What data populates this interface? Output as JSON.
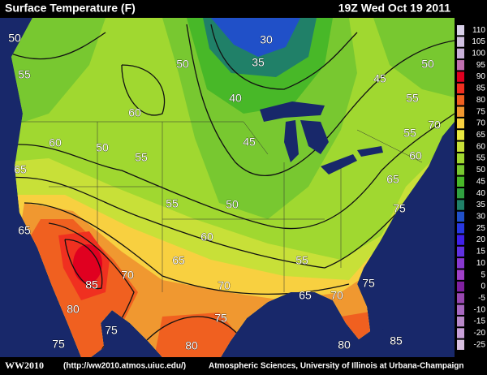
{
  "header": {
    "title": "Surface Temperature (F)",
    "timestamp": "19Z Wed Oct 19 2011"
  },
  "contour_labels": [
    50,
    30,
    35,
    50,
    50,
    55,
    45,
    40,
    55,
    60,
    70,
    55,
    60,
    50,
    45,
    55,
    60,
    65,
    65,
    55,
    50,
    75,
    65,
    60,
    65,
    55,
    70,
    85,
    70,
    75,
    65,
    70,
    80,
    75,
    75,
    75,
    80,
    80,
    85
  ],
  "legend": {
    "items": [
      {
        "value": 110,
        "color": "#d8d0e8"
      },
      {
        "value": 105,
        "color": "#d0c0e0"
      },
      {
        "value": 100,
        "color": "#c8b0d8"
      },
      {
        "value": 95,
        "color": "#c070b0"
      },
      {
        "value": 90,
        "color": "#e00020"
      },
      {
        "value": 85,
        "color": "#f03020"
      },
      {
        "value": 80,
        "color": "#f06020"
      },
      {
        "value": 75,
        "color": "#f09830"
      },
      {
        "value": 70,
        "color": "#f8d040"
      },
      {
        "value": 65,
        "color": "#e8e840"
      },
      {
        "value": 60,
        "color": "#c8e038"
      },
      {
        "value": 55,
        "color": "#a0d830"
      },
      {
        "value": 50,
        "color": "#78c830"
      },
      {
        "value": 45,
        "color": "#48b828"
      },
      {
        "value": 40,
        "color": "#30a040"
      },
      {
        "value": 35,
        "color": "#208068"
      },
      {
        "value": 30,
        "color": "#2050c8"
      },
      {
        "value": 25,
        "color": "#2838e0"
      },
      {
        "value": 20,
        "color": "#4020e8"
      },
      {
        "value": 15,
        "color": "#6030e0"
      },
      {
        "value": 10,
        "color": "#8838d0"
      },
      {
        "value": 5,
        "color": "#a040c8"
      },
      {
        "value": 0,
        "color": "#8020a0"
      },
      {
        "value": -5,
        "color": "#9848b0"
      },
      {
        "value": -10,
        "color": "#a868c0"
      },
      {
        "value": -15,
        "color": "#b888c8"
      },
      {
        "value": -20,
        "color": "#c8a0d8"
      },
      {
        "value": -25,
        "color": "#d8c0e0"
      }
    ]
  },
  "footer": {
    "logo": "WW2010",
    "url": "(http://ww2010.atmos.uiuc.edu/)",
    "credit": "Atmospheric Sciences, University of Illinois at Urbana-Champaign"
  }
}
